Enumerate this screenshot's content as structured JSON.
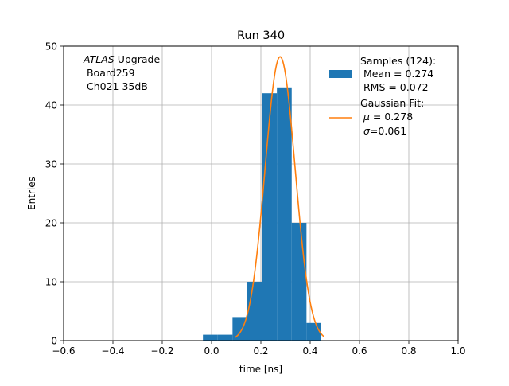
{
  "chart_data": {
    "type": "histogram",
    "title": "Run 340",
    "xlabel": "time [ns]",
    "ylabel": "Entries",
    "xlim": [
      -0.6,
      1.0
    ],
    "ylim": [
      0,
      50
    ],
    "grid": true,
    "xticks": [
      -0.6,
      -0.4,
      -0.2,
      0.0,
      0.2,
      0.4,
      0.6,
      0.8,
      1.0
    ],
    "xtick_labels": [
      "−0.6",
      "−0.4",
      "−0.2",
      "0.0",
      "0.2",
      "0.4",
      "0.6",
      "0.8",
      "1.0"
    ],
    "yticks": [
      0,
      10,
      20,
      30,
      40,
      50
    ],
    "ytick_labels": [
      "0",
      "10",
      "20",
      "30",
      "40",
      "50"
    ],
    "histogram": {
      "name": "Samples",
      "color": "#1f77b4",
      "bins": [
        {
          "x0": -0.035,
          "x1": 0.025,
          "count": 1
        },
        {
          "x0": 0.025,
          "x1": 0.085,
          "count": 1
        },
        {
          "x0": 0.085,
          "x1": 0.145,
          "count": 4
        },
        {
          "x0": 0.145,
          "x1": 0.205,
          "count": 10
        },
        {
          "x0": 0.205,
          "x1": 0.265,
          "count": 42
        },
        {
          "x0": 0.265,
          "x1": 0.325,
          "count": 43
        },
        {
          "x0": 0.325,
          "x1": 0.385,
          "count": 20
        },
        {
          "x0": 0.385,
          "x1": 0.445,
          "count": 3
        }
      ]
    },
    "fit": {
      "name": "Gaussian Fit",
      "color": "#ff7f0e",
      "mu": 0.278,
      "sigma": 0.061,
      "amplitude": 48.2,
      "x_range": [
        0.095,
        0.455
      ]
    },
    "annotation": {
      "italic": "ATLAS",
      "rest": " Upgrade",
      "line2": " Board259",
      "line3": " Ch021 35dB"
    },
    "legend": {
      "position": "top-right",
      "samples_line1": "Samples (124):",
      "samples_line2": " Mean = 0.274",
      "samples_line3": " RMS = 0.072",
      "fit_line1": "Gaussian Fit:",
      "fit_mu_symbol": "μ",
      "fit_mu_value": " = 0.278",
      "fit_sigma_symbol": "σ",
      "fit_sigma_value": "=0.061"
    }
  }
}
